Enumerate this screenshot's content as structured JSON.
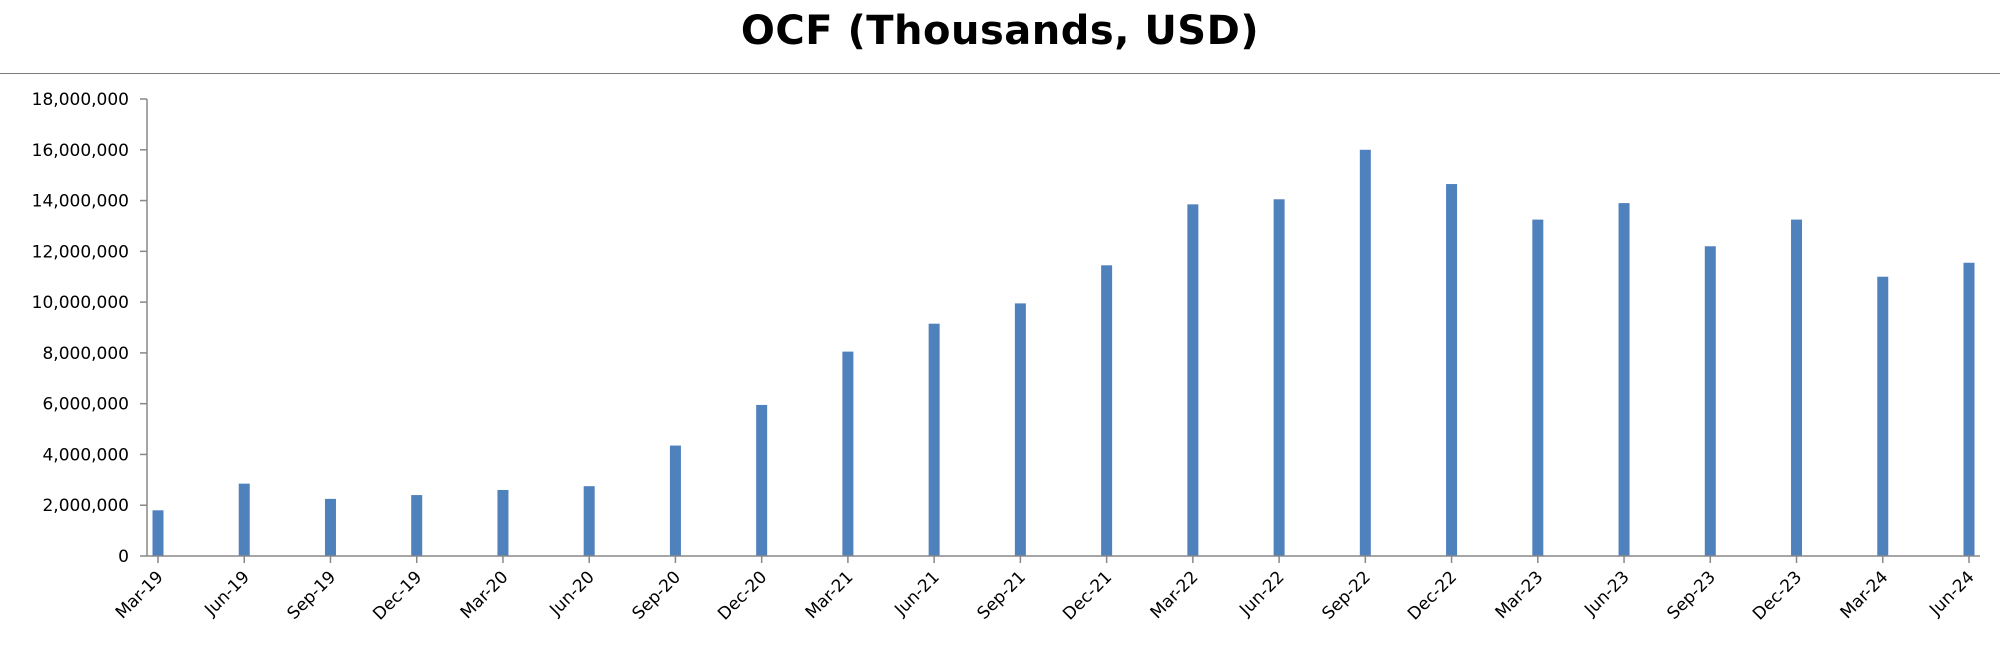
{
  "chart_data": {
    "type": "bar",
    "title": "OCF (Thousands, USD)",
    "xlabel": "",
    "ylabel": "",
    "categories": [
      "Mar-19",
      "Jun-19",
      "Sep-19",
      "Dec-19",
      "Mar-20",
      "Jun-20",
      "Sep-20",
      "Dec-20",
      "Mar-21",
      "Jun-21",
      "Sep-21",
      "Dec-21",
      "Mar-22",
      "Jun-22",
      "Sep-22",
      "Dec-22",
      "Mar-23",
      "Jun-23",
      "Sep-23",
      "Dec-23",
      "Mar-24",
      "Jun-24"
    ],
    "values": [
      1800000,
      2850000,
      2250000,
      2400000,
      2600000,
      2750000,
      4350000,
      5950000,
      8050000,
      9150000,
      9950000,
      11450000,
      13850000,
      14050000,
      16000000,
      14650000,
      13250000,
      13900000,
      12200000,
      13250000,
      11000000,
      11550000
    ],
    "ylim": [
      0,
      18000000
    ],
    "yticks": [
      "0",
      "2,000,000",
      "4,000,000",
      "6,000,000",
      "8,000,000",
      "10,000,000",
      "12,000,000",
      "14,000,000",
      "16,000,000",
      "18,000,000"
    ],
    "bar_color": "#4f81bd",
    "grid": false,
    "legend": "none"
  }
}
